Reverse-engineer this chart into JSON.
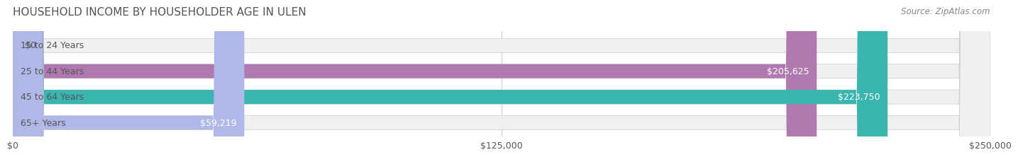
{
  "title": "HOUSEHOLD INCOME BY HOUSEHOLDER AGE IN ULEN",
  "source": "Source: ZipAtlas.com",
  "categories": [
    "15 to 24 Years",
    "25 to 44 Years",
    "45 to 64 Years",
    "65+ Years"
  ],
  "values": [
    0,
    205625,
    223750,
    59219
  ],
  "value_labels": [
    "$0",
    "$205,625",
    "$223,750",
    "$59,219"
  ],
  "bar_colors": [
    "#a8d0e8",
    "#b07ab0",
    "#3ab5b0",
    "#b0b8e8"
  ],
  "bar_bg_color": "#f0f0f0",
  "xlim": [
    0,
    250000
  ],
  "xtick_values": [
    0,
    125000,
    250000
  ],
  "xtick_labels": [
    "$0",
    "$125,000",
    "$250,000"
  ],
  "title_color": "#555555",
  "source_color": "#888888",
  "label_color_dark": "#555555",
  "label_color_light": "#ffffff",
  "bar_height": 0.55,
  "bar_gap": 0.25,
  "title_fontsize": 11,
  "source_fontsize": 8.5,
  "tick_fontsize": 9,
  "bar_label_fontsize": 9,
  "category_fontsize": 9
}
